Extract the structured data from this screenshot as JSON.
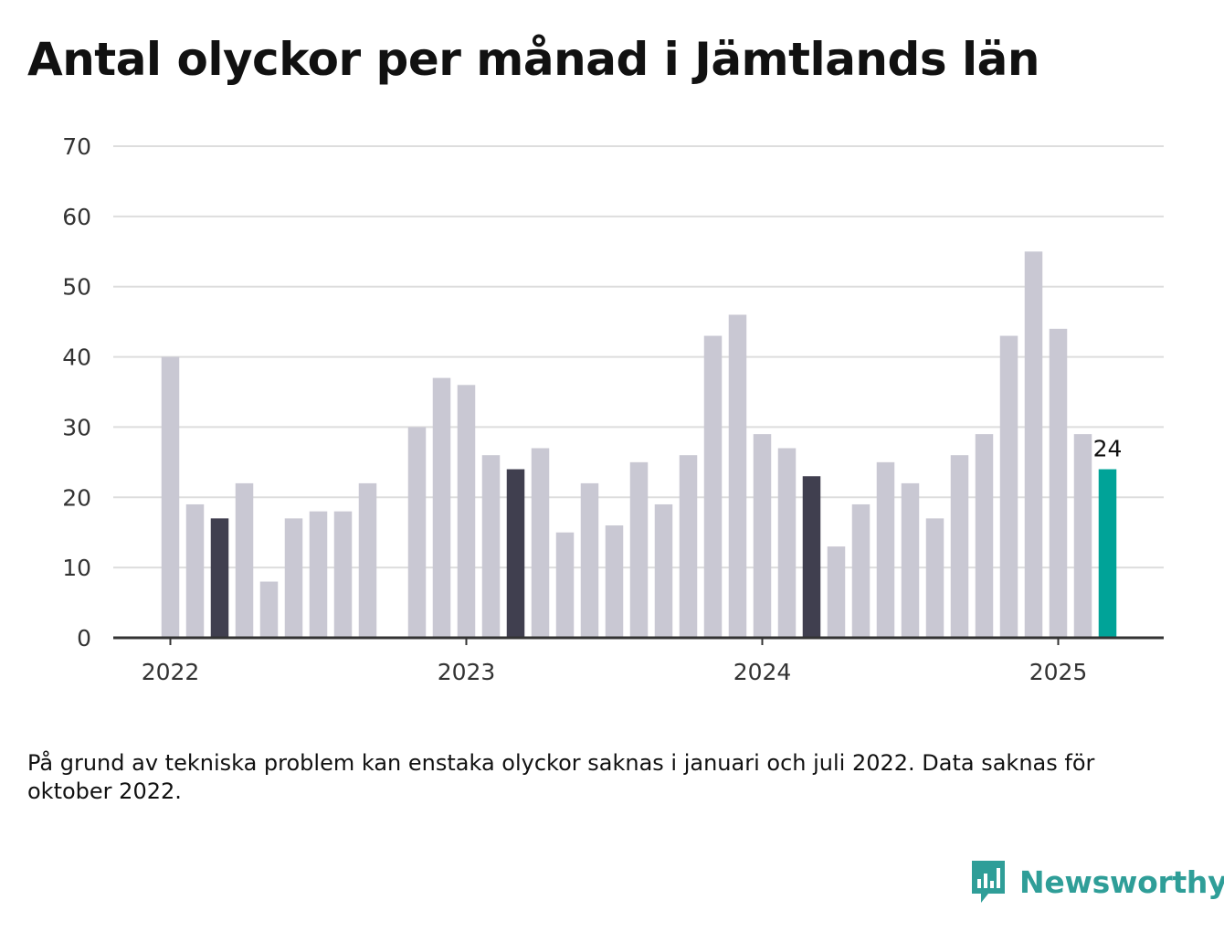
{
  "title": "Antal olyckor per månad i Jämtlands län",
  "note": "På grund av tekniska problem kan enstaka olyckor saknas i januari och juli 2022. Data saknas för oktober 2022.",
  "brand": {
    "name": "Newsworthy",
    "color": "#2f9e98",
    "icon": "newsworthy-logo-icon"
  },
  "colors": {
    "default": "#c9c8d3",
    "same_month_previous_years": "#403f4f",
    "latest": "#00a398",
    "gridline": "#dddddd",
    "axis": "#333333"
  },
  "chart_data": {
    "type": "bar",
    "x": [
      "2022-01",
      "2022-02",
      "2022-03",
      "2022-04",
      "2022-05",
      "2022-06",
      "2022-07",
      "2022-08",
      "2022-09",
      "2022-10",
      "2022-11",
      "2022-12",
      "2023-01",
      "2023-02",
      "2023-03",
      "2023-04",
      "2023-05",
      "2023-06",
      "2023-07",
      "2023-08",
      "2023-09",
      "2023-10",
      "2023-11",
      "2023-12",
      "2024-01",
      "2024-02",
      "2024-03",
      "2024-04",
      "2024-05",
      "2024-06",
      "2024-07",
      "2024-08",
      "2024-09",
      "2024-10",
      "2024-11",
      "2024-12",
      "2025-01",
      "2025-02",
      "2025-03"
    ],
    "values": [
      40,
      19,
      17,
      22,
      8,
      17,
      18,
      18,
      22,
      null,
      30,
      37,
      36,
      26,
      24,
      27,
      15,
      22,
      16,
      25,
      19,
      26,
      43,
      46,
      29,
      27,
      23,
      13,
      19,
      25,
      22,
      17,
      26,
      29,
      43,
      55,
      44,
      29,
      24
    ],
    "highlight": {
      "same_month_previous_years": [
        "2022-03",
        "2023-03",
        "2024-03"
      ],
      "latest": "2025-03"
    },
    "data_labels": [
      {
        "x": "2025-03",
        "text": "24"
      }
    ],
    "xticks": [
      "2022",
      "2023",
      "2024",
      "2025"
    ],
    "yticks": [
      0,
      10,
      20,
      30,
      40,
      50,
      60,
      70
    ],
    "ylim": [
      0,
      70
    ],
    "xlabel": "",
    "ylabel": "",
    "grid": true,
    "legend": "none"
  }
}
